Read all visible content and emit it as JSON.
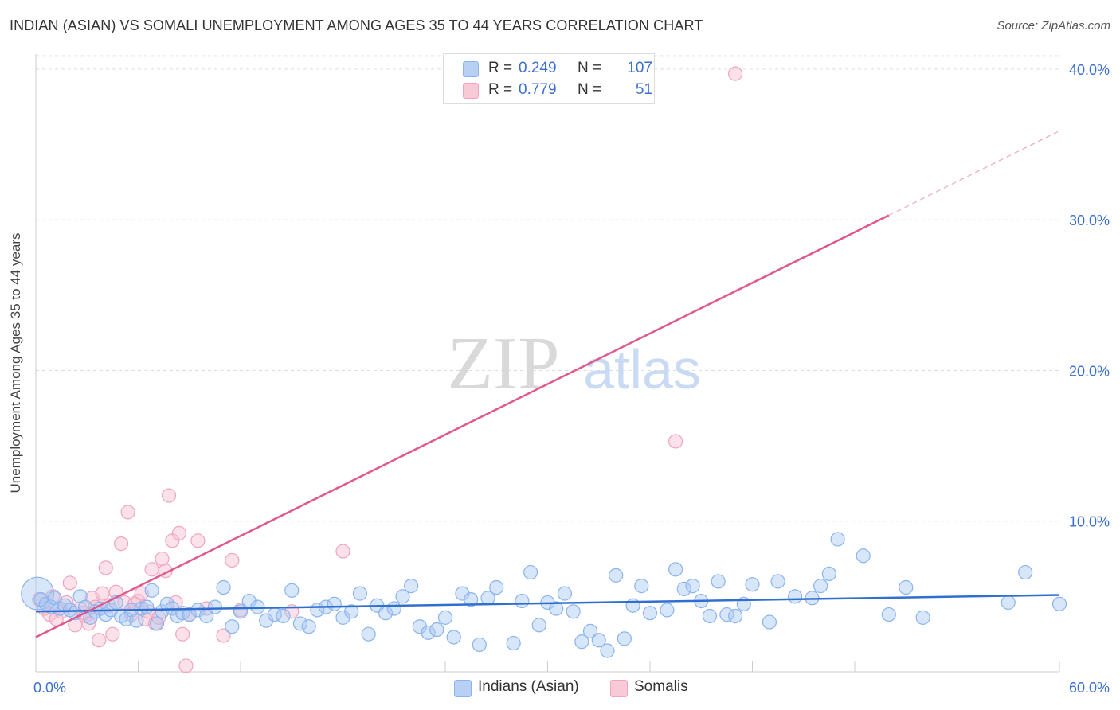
{
  "chart_data": {
    "type": "scatter",
    "title": "INDIAN (ASIAN) VS SOMALI UNEMPLOYMENT AMONG AGES 35 TO 44 YEARS CORRELATION CHART",
    "source": "Source: ZipAtlas.com",
    "ylabel": "Unemployment Among Ages 35 to 44 years",
    "xlim": [
      0,
      60
    ],
    "ylim": [
      0,
      41
    ],
    "x_tick_labels": {
      "min": "0.0%",
      "max": "60.0%"
    },
    "y_ticks": [
      {
        "value": 10,
        "label": "10.0%"
      },
      {
        "value": 20,
        "label": "20.0%"
      },
      {
        "value": 30,
        "label": "30.0%"
      },
      {
        "value": 40,
        "label": "40.0%"
      }
    ],
    "watermark": {
      "zip": "ZIP",
      "atlas": "atlas"
    },
    "legend_top": [
      {
        "series": "Indians (Asian)",
        "r_label": "R =",
        "r_value": "0.249",
        "n_label": "N =",
        "n_value": "107"
      },
      {
        "series": "Somalis",
        "r_label": "R =",
        "r_value": "0.779",
        "n_label": "N =",
        "n_value": "51"
      }
    ],
    "series": [
      {
        "name": "Indians (Asian)",
        "color": "#8ab4f0",
        "fill": "#a9c8f2",
        "line_color": "#2f6fd0",
        "trend": {
          "x0": 0,
          "y0": 4.0,
          "x1": 60,
          "y1": 5.1
        },
        "points": [
          [
            0.1,
            5.2,
            2.4
          ],
          [
            0.3,
            4.8,
            1
          ],
          [
            0.6,
            4.5,
            1
          ],
          [
            0.9,
            4.3,
            1
          ],
          [
            1.1,
            4.9,
            1
          ],
          [
            1.4,
            4.2,
            1
          ],
          [
            1.7,
            4.4,
            1
          ],
          [
            2.0,
            4.1,
            1
          ],
          [
            2.3,
            3.9,
            1
          ],
          [
            2.6,
            5.0,
            1
          ],
          [
            2.9,
            4.3,
            1
          ],
          [
            3.2,
            3.6,
            1
          ],
          [
            3.5,
            4.0,
            1
          ],
          [
            3.8,
            4.2,
            1
          ],
          [
            4.1,
            3.8,
            1
          ],
          [
            4.4,
            4.1,
            1
          ],
          [
            4.7,
            4.6,
            1
          ],
          [
            5.0,
            3.7,
            1
          ],
          [
            5.3,
            3.5,
            1
          ],
          [
            5.6,
            4.1,
            1
          ],
          [
            5.9,
            3.4,
            1
          ],
          [
            6.2,
            4.2,
            1
          ],
          [
            6.5,
            4.3,
            1
          ],
          [
            6.8,
            5.4,
            1
          ],
          [
            7.1,
            3.2,
            1
          ],
          [
            7.4,
            4.0,
            1
          ],
          [
            7.7,
            4.5,
            1
          ],
          [
            8.0,
            4.2,
            1
          ],
          [
            8.3,
            3.7,
            1
          ],
          [
            8.6,
            3.9,
            1
          ],
          [
            9.0,
            3.8,
            1
          ],
          [
            9.5,
            4.1,
            1
          ],
          [
            10.0,
            3.7,
            1
          ],
          [
            10.5,
            4.3,
            1
          ],
          [
            11.0,
            5.6,
            1
          ],
          [
            11.5,
            3.0,
            1
          ],
          [
            12.0,
            4.0,
            1
          ],
          [
            12.5,
            4.7,
            1
          ],
          [
            13.0,
            4.3,
            1
          ],
          [
            13.5,
            3.4,
            1
          ],
          [
            14.0,
            3.8,
            1
          ],
          [
            14.5,
            3.7,
            1
          ],
          [
            15.0,
            5.4,
            1
          ],
          [
            15.5,
            3.2,
            1
          ],
          [
            16.0,
            3.0,
            1
          ],
          [
            16.5,
            4.1,
            1
          ],
          [
            17.0,
            4.3,
            1
          ],
          [
            17.5,
            4.5,
            1
          ],
          [
            18.0,
            3.6,
            1
          ],
          [
            18.5,
            4.0,
            1
          ],
          [
            19.0,
            5.2,
            1
          ],
          [
            19.5,
            2.5,
            1
          ],
          [
            20.0,
            4.4,
            1
          ],
          [
            20.5,
            3.9,
            1
          ],
          [
            21.0,
            4.2,
            1
          ],
          [
            21.5,
            5.0,
            1
          ],
          [
            22.0,
            5.7,
            1
          ],
          [
            22.5,
            3.0,
            1
          ],
          [
            23.0,
            2.6,
            1
          ],
          [
            23.5,
            2.8,
            1
          ],
          [
            24.0,
            3.6,
            1
          ],
          [
            24.5,
            2.3,
            1
          ],
          [
            25.0,
            5.2,
            1
          ],
          [
            25.5,
            4.8,
            1
          ],
          [
            26.0,
            1.8,
            1
          ],
          [
            26.5,
            4.9,
            1
          ],
          [
            27.0,
            5.6,
            1
          ],
          [
            28.0,
            1.9,
            1
          ],
          [
            28.5,
            4.7,
            1
          ],
          [
            29.0,
            6.6,
            1
          ],
          [
            29.5,
            3.1,
            1
          ],
          [
            30.0,
            4.6,
            1
          ],
          [
            30.5,
            4.2,
            1
          ],
          [
            31.0,
            5.2,
            1
          ],
          [
            31.5,
            4.0,
            1
          ],
          [
            32.0,
            2.0,
            1
          ],
          [
            32.5,
            2.7,
            1
          ],
          [
            33.0,
            2.1,
            1
          ],
          [
            33.5,
            1.4,
            1
          ],
          [
            34.0,
            6.4,
            1
          ],
          [
            34.5,
            2.2,
            1
          ],
          [
            35.0,
            4.4,
            1
          ],
          [
            35.5,
            5.7,
            1
          ],
          [
            36.0,
            3.9,
            1
          ],
          [
            37.0,
            4.1,
            1
          ],
          [
            37.5,
            6.8,
            1
          ],
          [
            38.0,
            5.5,
            1
          ],
          [
            38.5,
            5.7,
            1
          ],
          [
            39.0,
            4.7,
            1
          ],
          [
            39.5,
            3.7,
            1
          ],
          [
            40.0,
            6.0,
            1
          ],
          [
            40.5,
            3.8,
            1
          ],
          [
            41.0,
            3.7,
            1
          ],
          [
            41.5,
            4.5,
            1
          ],
          [
            42.0,
            5.8,
            1
          ],
          [
            43.0,
            3.3,
            1
          ],
          [
            43.5,
            6.0,
            1
          ],
          [
            44.5,
            5.0,
            1
          ],
          [
            45.5,
            4.9,
            1
          ],
          [
            46.0,
            5.7,
            1
          ],
          [
            46.5,
            6.5,
            1
          ],
          [
            47.0,
            8.8,
            1
          ],
          [
            48.5,
            7.7,
            1
          ],
          [
            50.0,
            3.8,
            1
          ],
          [
            51.0,
            5.6,
            1
          ],
          [
            52.0,
            3.6,
            1
          ],
          [
            57.0,
            4.6,
            1
          ],
          [
            58.0,
            6.6,
            1
          ],
          [
            60.0,
            4.5,
            1
          ]
        ]
      },
      {
        "name": "Somalis",
        "color": "#f2a3bd",
        "fill": "#f7bfd0",
        "line_color": "#e0588c",
        "trend": {
          "x0": 0,
          "y0": 2.3,
          "x1": 50,
          "y1": 30.3,
          "dash_x1": 60,
          "dash_y1": 35.9
        },
        "points": [
          [
            0.2,
            4.8,
            1
          ],
          [
            0.5,
            4.2,
            1
          ],
          [
            0.8,
            3.8,
            1
          ],
          [
            1.0,
            5.0,
            1
          ],
          [
            1.2,
            3.5,
            1
          ],
          [
            1.5,
            4.0,
            1
          ],
          [
            1.8,
            4.6,
            1
          ],
          [
            2.0,
            5.9,
            1
          ],
          [
            2.3,
            3.1,
            1
          ],
          [
            2.6,
            4.2,
            1
          ],
          [
            2.9,
            3.7,
            1
          ],
          [
            3.1,
            3.2,
            1
          ],
          [
            3.3,
            4.9,
            1
          ],
          [
            3.5,
            4.3,
            1
          ],
          [
            3.7,
            2.1,
            1
          ],
          [
            3.9,
            5.2,
            1
          ],
          [
            4.1,
            6.9,
            1
          ],
          [
            4.3,
            4.4,
            1
          ],
          [
            4.5,
            2.5,
            1
          ],
          [
            4.7,
            5.3,
            1
          ],
          [
            5.0,
            8.5,
            1
          ],
          [
            5.2,
            4.6,
            1
          ],
          [
            5.4,
            10.6,
            1
          ],
          [
            5.6,
            3.8,
            1
          ],
          [
            5.8,
            4.5,
            1
          ],
          [
            6.0,
            4.7,
            1
          ],
          [
            6.2,
            5.2,
            1
          ],
          [
            6.4,
            3.5,
            1
          ],
          [
            6.6,
            4.0,
            1
          ],
          [
            6.8,
            6.8,
            1
          ],
          [
            7.0,
            3.2,
            1
          ],
          [
            7.2,
            3.6,
            1
          ],
          [
            7.4,
            7.5,
            1
          ],
          [
            7.6,
            6.7,
            1
          ],
          [
            7.8,
            11.7,
            1
          ],
          [
            8.0,
            8.7,
            1
          ],
          [
            8.2,
            4.6,
            1
          ],
          [
            8.4,
            9.2,
            1
          ],
          [
            8.6,
            2.5,
            1
          ],
          [
            8.8,
            0.4,
            1
          ],
          [
            9.0,
            3.8,
            1
          ],
          [
            9.5,
            8.7,
            1
          ],
          [
            10.0,
            4.2,
            1
          ],
          [
            11.0,
            2.4,
            1
          ],
          [
            11.5,
            7.4,
            1
          ],
          [
            12.0,
            4.1,
            1
          ],
          [
            15.0,
            4.0,
            1
          ],
          [
            18.0,
            8.0,
            1
          ],
          [
            37.5,
            15.3,
            1
          ],
          [
            41.0,
            39.7,
            1
          ],
          [
            2.8,
            3.9,
            1
          ]
        ]
      }
    ]
  },
  "bottom_legend": [
    "Indians (Asian)",
    "Somalis"
  ]
}
